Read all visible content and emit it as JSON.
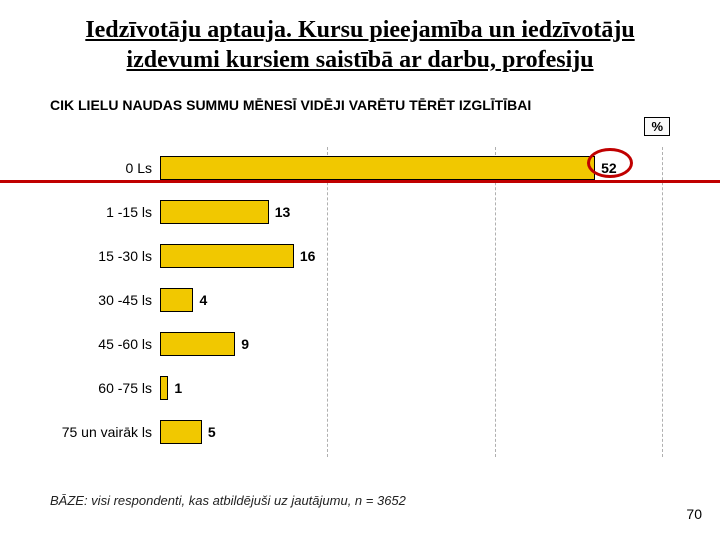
{
  "title": "Iedzīvotāju aptauja. Kursu pieejamība un iedzīvotāju izdevumi kursiem saistībā ar darbu, profesiju",
  "chart": {
    "type": "bar-horizontal",
    "title": "CIK LIELU NAUDAS SUMMU MĒNESĪ VIDĒJI VARĒTU TĒRĒT IZGLĪTĪBAI",
    "unit_label": "%",
    "bar_color": "#f1c800",
    "bar_border": "#000000",
    "grid_color": "#b0b0b0",
    "background_color": "#ffffff",
    "xlim": [
      0,
      60
    ],
    "grid_breaks": [
      20,
      40,
      60
    ],
    "label_fontsize": 14,
    "value_fontsize": 14,
    "title_fontsize": 14,
    "categories": [
      {
        "label": "0 Ls",
        "value": 52
      },
      {
        "label": "1 -15 ls",
        "value": 13
      },
      {
        "label": "15 -30 ls",
        "value": 16
      },
      {
        "label": "30 -45 ls",
        "value": 4
      },
      {
        "label": "45 -60 ls",
        "value": 9
      },
      {
        "label": "60 -75 ls",
        "value": 1
      },
      {
        "label": "75 un vairāk ls",
        "value": 5
      }
    ],
    "highlight": {
      "row_index": 0,
      "ellipse_color": "#c00000",
      "line_color": "#c00000"
    }
  },
  "footnote": "BĀZE: visi respondenti, kas atbildējuši uz jautājumu, n = 3652",
  "page_number": "70"
}
